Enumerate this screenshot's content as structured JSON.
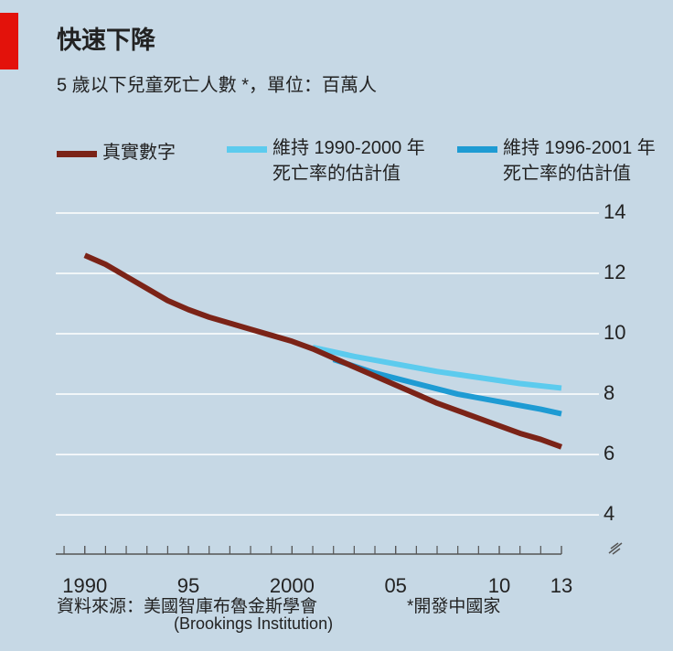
{
  "chart_data": {
    "type": "line",
    "title": "快速下降",
    "subtitle": "5 歲以下兒童死亡人數 *，單位：百萬人",
    "series": [
      {
        "name": "真實數字",
        "color": "#7b2317",
        "x": [
          1990,
          1991,
          1992,
          1993,
          1994,
          1995,
          1996,
          1997,
          1998,
          1999,
          2000,
          2001,
          2002,
          2003,
          2004,
          2005,
          2006,
          2007,
          2008,
          2009,
          2010,
          2011,
          2012,
          2013
        ],
        "values": [
          12.6,
          12.3,
          11.9,
          11.5,
          11.1,
          10.8,
          10.55,
          10.35,
          10.15,
          9.95,
          9.75,
          9.5,
          9.2,
          8.9,
          8.6,
          8.3,
          8.0,
          7.7,
          7.45,
          7.2,
          6.95,
          6.7,
          6.5,
          6.25
        ]
      },
      {
        "name": "維持 1990-2000 年死亡率的估計值",
        "color": "#5ccbee",
        "x": [
          2001,
          2003,
          2005,
          2007,
          2009,
          2011,
          2013
        ],
        "values": [
          9.55,
          9.25,
          9.0,
          8.75,
          8.55,
          8.35,
          8.2
        ]
      },
      {
        "name": "維持 1996-2001 年死亡率的估計值",
        "color": "#1e9bd3",
        "x": [
          2002,
          2004,
          2006,
          2008,
          2010,
          2012,
          2013
        ],
        "values": [
          9.15,
          8.7,
          8.35,
          8.0,
          7.75,
          7.5,
          7.35
        ]
      }
    ],
    "xlim": [
      1988.6,
      2013
    ],
    "xticks": [
      1990,
      {
        "value": 1995,
        "label": "95"
      },
      2000,
      {
        "value": 2005,
        "label": "05"
      },
      {
        "value": 2010,
        "label": "10"
      },
      {
        "value": 2013,
        "label": "13"
      }
    ],
    "xminor_step": 1,
    "ylim": [
      2.7,
      14
    ],
    "yticks": [
      4,
      6,
      8,
      10,
      12,
      14
    ],
    "grid": true,
    "source": [
      "資料來源：美國智庫布魯金斯學會",
      "(Brookings Institution)"
    ],
    "footnote": "*開發中國家"
  }
}
